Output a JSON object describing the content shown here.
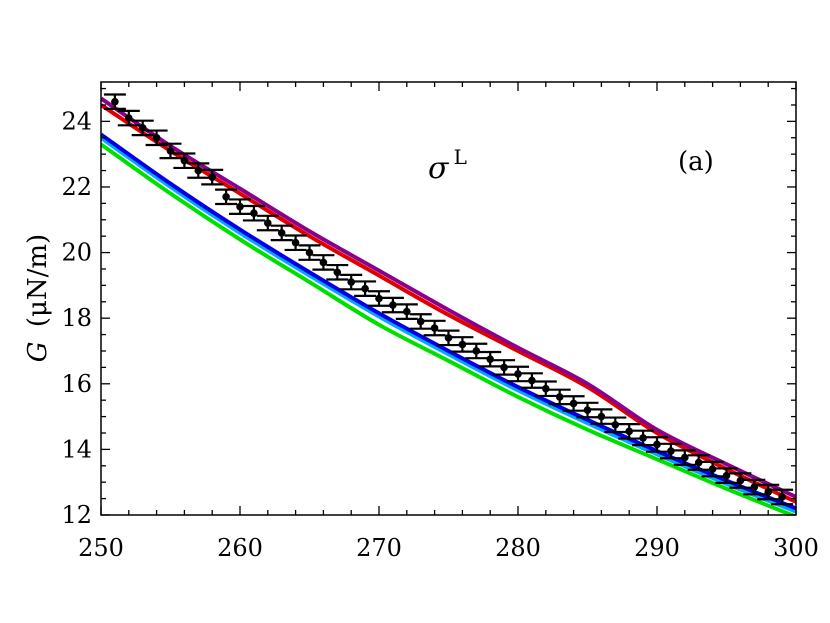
{
  "chart_data": {
    "type": "line",
    "title": "",
    "xlabel": "",
    "ylabel": {
      "symbol": "G",
      "unit": "(μN/m)"
    },
    "annotation": {
      "symbol": "σ",
      "superscript": "L"
    },
    "panel_label": "(a)",
    "xlim": [
      250,
      300
    ],
    "ylim": [
      12,
      25.2
    ],
    "x_ticks": [
      250,
      260,
      270,
      280,
      290,
      300
    ],
    "y_ticks": [
      12,
      14,
      16,
      18,
      20,
      22,
      24
    ],
    "grid": false,
    "legend": "none",
    "series": [
      {
        "kind": "curve",
        "color": "#e00000",
        "x": [
          250,
          255,
          260,
          265,
          270,
          275,
          280,
          285,
          290,
          295,
          300
        ],
        "y": [
          24.5,
          23.1,
          21.8,
          20.5,
          19.3,
          18.1,
          17.0,
          15.9,
          14.5,
          13.4,
          12.4
        ]
      },
      {
        "kind": "curve",
        "color": "#8b008b",
        "x": [
          250,
          255,
          260,
          265,
          270,
          275,
          280,
          285,
          290,
          295,
          300
        ],
        "y": [
          24.7,
          23.25,
          21.95,
          20.65,
          19.45,
          18.25,
          17.1,
          16.0,
          14.6,
          13.55,
          12.55
        ]
      },
      {
        "kind": "curve",
        "color": "#00e000",
        "x": [
          250,
          255,
          260,
          265,
          270,
          275,
          280,
          285,
          290,
          295,
          300
        ],
        "y": [
          23.3,
          21.8,
          20.4,
          19.1,
          17.8,
          16.7,
          15.6,
          14.6,
          13.7,
          12.8,
          11.95
        ]
      },
      {
        "kind": "curve",
        "color": "#00a8ff",
        "x": [
          250,
          255,
          260,
          265,
          270,
          275,
          280,
          285,
          290,
          295,
          300
        ],
        "y": [
          23.5,
          22.0,
          20.6,
          19.3,
          18.05,
          16.9,
          15.8,
          14.8,
          13.85,
          12.95,
          12.1
        ]
      },
      {
        "kind": "curve",
        "color": "#0000e8",
        "x": [
          250,
          255,
          260,
          265,
          270,
          275,
          280,
          285,
          290,
          295,
          300
        ],
        "y": [
          23.6,
          22.1,
          20.7,
          19.4,
          18.15,
          17.0,
          15.9,
          14.9,
          13.95,
          13.05,
          12.2
        ]
      },
      {
        "kind": "points",
        "color": "#000000",
        "x": [
          251,
          252,
          253,
          254,
          255,
          256,
          257,
          258,
          259,
          260,
          261,
          262,
          263,
          264,
          265,
          266,
          267,
          268,
          269,
          270,
          271,
          272,
          273,
          274,
          275,
          276,
          277,
          278,
          279,
          280,
          281,
          282,
          283,
          284,
          285,
          286,
          287,
          288,
          289,
          290,
          291,
          292,
          293,
          294,
          295,
          296,
          297,
          298,
          299
        ],
        "y": [
          24.6,
          24.1,
          23.8,
          23.5,
          23.1,
          22.8,
          22.5,
          22.3,
          21.7,
          21.4,
          21.2,
          20.9,
          20.6,
          20.3,
          20.0,
          19.7,
          19.4,
          19.1,
          18.9,
          18.6,
          18.4,
          18.2,
          17.9,
          17.7,
          17.4,
          17.2,
          17.0,
          16.75,
          16.5,
          16.3,
          16.1,
          15.85,
          15.6,
          15.4,
          15.2,
          15.0,
          14.75,
          14.55,
          14.35,
          14.15,
          13.95,
          13.75,
          13.6,
          13.4,
          13.2,
          13.05,
          12.85,
          12.7,
          12.55
        ],
        "error": 0.22
      }
    ]
  }
}
